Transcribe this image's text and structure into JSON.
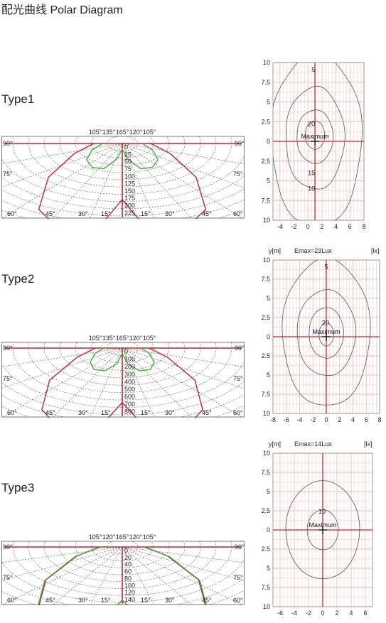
{
  "page": {
    "title": "配光曲线 Polar Diagram"
  },
  "colors": {
    "axis_red": "#d0202c",
    "curve_red": "#c4203a",
    "curve_green": "#44aa3a",
    "grid": "#555555",
    "iso_grid": "#f2b8b8",
    "iso_line": "#555555"
  },
  "types": [
    {
      "label": "Type1",
      "polar": {
        "top_angle_labels": [
          "105°",
          "135°",
          "165°",
          "120°",
          "105°"
        ],
        "side_labels": [
          "90°",
          "90°",
          "75°",
          "75°"
        ],
        "bottom_angle_labels": [
          "60°",
          "45°",
          "30°",
          "15°",
          "15°",
          "30°",
          "45°",
          "60°"
        ],
        "radial_labels": [
          "0",
          "25",
          "50",
          "75",
          "100",
          "125",
          "150",
          "175",
          "200",
          "225"
        ]
      },
      "isolux": {
        "header": {
          "ylabel": "",
          "emax": "",
          "unit": ""
        },
        "x_ticks": [
          "-4",
          "-2",
          "0",
          "2",
          "4",
          "6",
          "8"
        ],
        "y_ticks": [
          "10",
          "7.5",
          "5",
          "2.5",
          "0",
          "2.5",
          "5",
          "7.5",
          "10"
        ],
        "contour_labels": [
          "5",
          "20",
          "15",
          "10"
        ],
        "maximum_label": "Maximum"
      }
    },
    {
      "label": "Type2",
      "polar": {
        "top_angle_labels": [
          "105°",
          "135°",
          "165°",
          "120°",
          "105°"
        ],
        "side_labels": [
          "90°",
          "90°",
          "75°",
          "75°"
        ],
        "bottom_angle_labels": [
          "60°",
          "45°",
          "30°",
          "15°",
          "15°",
          "30°",
          "45°",
          "60°"
        ],
        "radial_labels": [
          "0",
          "100",
          "200",
          "300",
          "400",
          "500",
          "600",
          "700",
          "800"
        ]
      },
      "isolux": {
        "header": {
          "ylabel": "y[m]",
          "emax": "Emax=23Lux",
          "unit": "[lx]"
        },
        "x_ticks": [
          "-8",
          "-6",
          "-4",
          "-2",
          "0",
          "2",
          "4",
          "6",
          "8"
        ],
        "y_ticks": [
          "10",
          "7.5",
          "5",
          "2.5",
          "0",
          "2.5",
          "5",
          "7.5",
          "10"
        ],
        "contour_labels": [
          "5",
          "20"
        ],
        "maximum_label": "Maximum"
      }
    },
    {
      "label": "Type3",
      "polar": {
        "top_angle_labels": [
          "105°",
          "120°",
          "165°",
          "120°",
          "105°"
        ],
        "side_labels": [
          "90°",
          "90°",
          "75°",
          "75°"
        ],
        "bottom_angle_labels": [
          "60°",
          "45°",
          "30°",
          "15°",
          "15°",
          "30°",
          "45°",
          "60°"
        ],
        "radial_labels": [
          "0",
          "20",
          "40",
          "60",
          "80",
          "100",
          "120",
          "140"
        ]
      },
      "isolux": {
        "header": {
          "ylabel": "y[m]",
          "emax": "Emax=14Lux",
          "unit": "[lx]"
        },
        "x_ticks": [
          "-6",
          "-4",
          "-2",
          "0",
          "2",
          "4",
          "6"
        ],
        "y_ticks": [
          "10",
          "7.5",
          "5",
          "2.5",
          "0",
          "2.5",
          "5",
          "7.5",
          "10"
        ],
        "contour_labels": [
          "10"
        ],
        "maximum_label": "Maximum"
      }
    }
  ],
  "chart_data": [
    {
      "type": "line",
      "title": "",
      "radial_ticks": [
        0,
        25,
        50,
        75,
        100,
        125,
        150,
        175,
        200,
        225
      ],
      "angle_ticks_deg": [
        15,
        30,
        45,
        60,
        75,
        90
      ]
    },
    {
      "type": "heatmap",
      "title": "",
      "x_ticks": [
        -4,
        -2,
        0,
        2,
        4,
        6,
        8
      ],
      "y_ticks": [
        10,
        7.5,
        5,
        2.5,
        0,
        2.5,
        5,
        7.5,
        10
      ],
      "contour_levels": [
        5,
        10,
        15,
        20
      ],
      "xlim": [
        -5,
        8
      ],
      "ylim": [
        -10,
        10
      ]
    },
    {
      "type": "line",
      "title": "",
      "radial_ticks": [
        0,
        100,
        200,
        300,
        400,
        500,
        600,
        700,
        800
      ],
      "angle_ticks_deg": [
        15,
        30,
        45,
        60,
        75,
        90
      ]
    },
    {
      "type": "heatmap",
      "title": "Emax=23Lux",
      "x_ticks": [
        -8,
        -6,
        -4,
        -2,
        0,
        2,
        4,
        6,
        8
      ],
      "y_ticks": [
        10,
        7.5,
        5,
        2.5,
        0,
        2.5,
        5,
        7.5,
        10
      ],
      "contour_levels": [
        5,
        20
      ],
      "xlim": [
        -8,
        8
      ],
      "ylim": [
        -10,
        10
      ]
    },
    {
      "type": "line",
      "title": "",
      "radial_ticks": [
        0,
        20,
        40,
        60,
        80,
        100,
        120,
        140
      ],
      "angle_ticks_deg": [
        15,
        30,
        45,
        60,
        75,
        90
      ]
    },
    {
      "type": "heatmap",
      "title": "Emax=14Lux",
      "x_ticks": [
        -6,
        -4,
        -2,
        0,
        2,
        4,
        6
      ],
      "y_ticks": [
        10,
        7.5,
        5,
        2.5,
        0,
        2.5,
        5,
        7.5,
        10
      ],
      "contour_levels": [
        10
      ],
      "xlim": [
        -7,
        7
      ],
      "ylim": [
        -10,
        10
      ]
    }
  ]
}
